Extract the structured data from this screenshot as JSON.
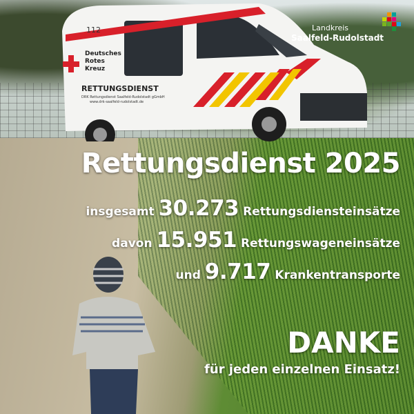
{
  "logo": {
    "line1": "Landkreis",
    "line2": "Saalfeld-Rudolstadt",
    "colors": [
      "#f39200",
      "#00a19a",
      "#c3d500",
      "#e30613",
      "#e5007d",
      "#7ab51d",
      "#5aa02c",
      "#e30613",
      "#1ea3e0",
      "#1e8f3c"
    ]
  },
  "vehicle": {
    "number": "112",
    "org": [
      "Deutsches",
      "Rotes",
      "Kreuz"
    ],
    "service": "RETTUNGSDIENST",
    "operator": "DRK Rettungsdienst Saalfeld-Rudolstadt gGmbH",
    "website": "www.drk-saalfeld-rudolstadt.de"
  },
  "headline": "Rettungsdienst 2025",
  "stats": [
    {
      "prefix": "insgesamt",
      "value": "30.273",
      "label": "Rettungsdiensteinsätze"
    },
    {
      "prefix": "davon",
      "value": "15.951",
      "label": "Rettungswageneinsätze"
    },
    {
      "prefix": "und",
      "value": "9.717",
      "label": "Krankentransporte"
    }
  ],
  "thanks": {
    "title": "DANKE",
    "subtitle": "für jeden einzelnen Einsatz!"
  }
}
